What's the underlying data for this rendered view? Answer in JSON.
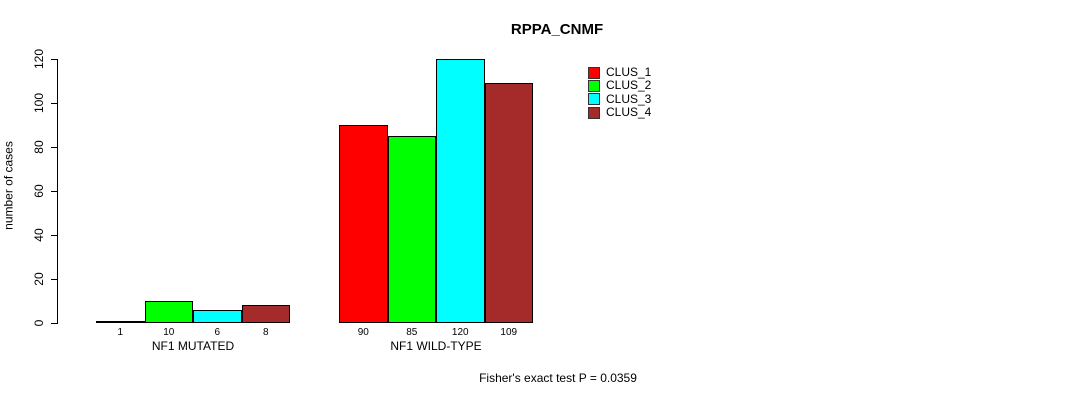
{
  "chart_data": {
    "type": "bar",
    "title": "RPPA_CNMF",
    "ylabel": "number of cases",
    "xlabel": "",
    "ylim": [
      0,
      120
    ],
    "yticks": [
      0,
      20,
      40,
      60,
      80,
      100,
      120
    ],
    "categories": [
      "NF1 MUTATED",
      "NF1 WILD-TYPE"
    ],
    "series": [
      {
        "name": "CLUS_1",
        "color": "#ff0000",
        "values": [
          1,
          90
        ]
      },
      {
        "name": "CLUS_2",
        "color": "#00ff00",
        "values": [
          10,
          85
        ]
      },
      {
        "name": "CLUS_3",
        "color": "#00ffff",
        "values": [
          6,
          120
        ]
      },
      {
        "name": "CLUS_4",
        "color": "#a52a2a",
        "values": [
          8,
          109
        ]
      }
    ],
    "bar_value_labels": true,
    "legend_position": "top-right",
    "grid": false,
    "annotation": "Fisher's exact test P = 0.0359"
  }
}
